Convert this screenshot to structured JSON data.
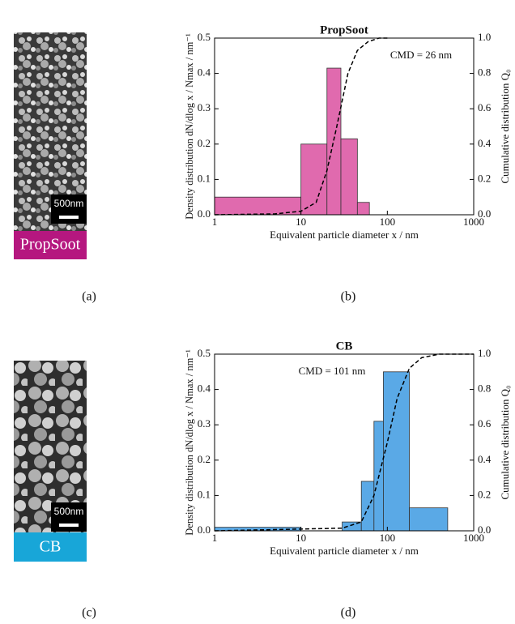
{
  "chart_data": [
    {
      "type": "histogram",
      "title": "PropSoot",
      "annotation": "CMD = 26 nm",
      "xlabel": "Equivalent particle diameter x / nm",
      "ylabel": "Density distribution dN/dlog x / Nmax / nm⁻¹",
      "y2label": "Cumulative distribution Q₀",
      "bins": [
        1,
        10,
        20,
        29,
        45,
        62
      ],
      "values": [
        0.05,
        0.2,
        0.415,
        0.215,
        0.035
      ],
      "color": "#e06aae",
      "series": [
        {
          "x": [
            1,
            5,
            10,
            15,
            20,
            26,
            35,
            45,
            60,
            80,
            100
          ],
          "values": [
            0,
            0.005,
            0.02,
            0.07,
            0.25,
            0.5,
            0.8,
            0.93,
            0.98,
            1.0,
            1.0
          ],
          "axis": "y2",
          "color": "#000000"
        }
      ],
      "xscale": "log",
      "xlim": [
        1,
        1000
      ],
      "xticks": [
        1,
        10,
        100,
        1000
      ],
      "ylim": [
        0,
        0.5
      ],
      "yticks": [
        {
          "value": 0,
          "label": "0.0"
        },
        0.1,
        0.2,
        0.3,
        0.4,
        0.5
      ],
      "y2lim": [
        0,
        1
      ],
      "y2ticks": [
        {
          "value": 0,
          "label": "0.0"
        },
        0.2,
        0.4,
        0.6,
        0.8,
        {
          "value": 1,
          "label": "1.0"
        }
      ]
    },
    {
      "type": "histogram",
      "title": "CB",
      "annotation": "CMD = 101 nm",
      "xlabel": "Equivalent particle diameter x / nm",
      "ylabel": "Density distribution dN/dlog x / Nmax / nm⁻¹",
      "y2label": "Cumulative distribution Q₀",
      "bins": [
        1,
        10,
        30,
        50,
        70,
        90,
        180,
        500
      ],
      "values": [
        0.01,
        0,
        0.025,
        0.14,
        0.31,
        0.45,
        0.065
      ],
      "color": "#5aa9e6",
      "series": [
        {
          "x": [
            1,
            10,
            30,
            50,
            70,
            100,
            130,
            180,
            250,
            400,
            1000
          ],
          "values": [
            0,
            0.01,
            0.015,
            0.05,
            0.2,
            0.5,
            0.75,
            0.92,
            0.98,
            1.0,
            1.0
          ],
          "axis": "y2",
          "color": "#000000"
        }
      ],
      "xscale": "log",
      "xlim": [
        1,
        1000
      ],
      "xticks": [
        1,
        10,
        100,
        1000
      ],
      "ylim": [
        0,
        0.5
      ],
      "yticks": [
        {
          "value": 0,
          "label": "0.0"
        },
        0.1,
        0.2,
        0.3,
        0.4,
        0.5
      ],
      "y2lim": [
        0,
        1
      ],
      "y2ticks": [
        {
          "value": 0,
          "label": "0.0"
        },
        0.2,
        0.4,
        0.6,
        0.8,
        {
          "value": 1,
          "label": "1.0"
        }
      ]
    }
  ],
  "images": [
    {
      "scale_bar": "500nm",
      "caption": "PropSoot"
    },
    {
      "scale_bar": "500nm",
      "caption": "CB"
    }
  ],
  "panel_labels": [
    "(a)",
    "(b)",
    "(c)",
    "(d)"
  ]
}
